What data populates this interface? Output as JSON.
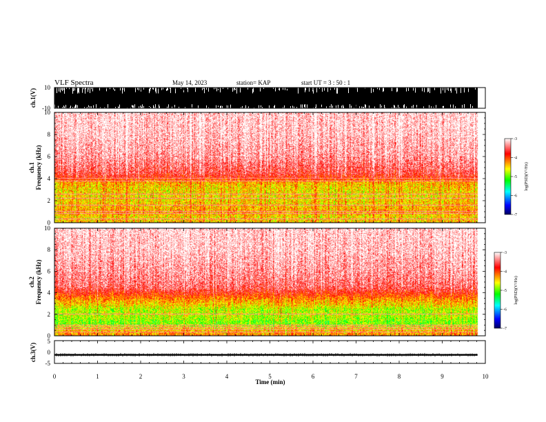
{
  "header": {
    "title": "VLF Spectra",
    "date": "May 14, 2023",
    "station": "station= KAP",
    "start": "start  UT  =   3  : 50 : 1"
  },
  "chart_data": [
    {
      "type": "line",
      "name": "ch1-waveform",
      "ylabel": "ch.1(V)",
      "ylim": [
        -10,
        10
      ],
      "ytick_labels": [
        "10",
        "-10"
      ],
      "xlim": [
        0,
        10
      ],
      "data_end_min": 9.82,
      "envelope": "saturated black trace, full scale -10 to 10 V with gaps reaching about -6 to 4 V"
    },
    {
      "type": "heatmap",
      "name": "ch1-spectrogram",
      "ylabel": "ch.1\nFrequency  (kHz)",
      "ylim": [
        0,
        10
      ],
      "ytick_labels": [
        "0",
        "2",
        "4",
        "6",
        "8",
        "10"
      ],
      "xlim": [
        0,
        10
      ],
      "data_end_min": 9.82,
      "profile_kHz": [
        0,
        0.5,
        0.9,
        1.5,
        2.0,
        2.5,
        3.0,
        3.5,
        3.8,
        4.0,
        4.5,
        6.0,
        8.0,
        10.0
      ],
      "profile_logPSD": [
        -4.4,
        -4.5,
        -4.3,
        -4.4,
        -4.5,
        -4.5,
        -4.5,
        -4.4,
        -4.2,
        -3.9,
        -3.6,
        -3.3,
        -3.15,
        -3.1
      ],
      "lines_kHz": [
        0.3,
        0.8,
        1.0,
        1.6,
        2.2,
        2.6,
        3.8,
        4.0
      ]
    },
    {
      "type": "heatmap",
      "name": "ch2-spectrogram",
      "ylabel": "ch.2\nFrequency  (kHz)",
      "ylim": [
        0,
        10
      ],
      "ytick_labels": [
        "0",
        "2",
        "4",
        "6",
        "8",
        "10"
      ],
      "xlim": [
        0,
        10
      ],
      "data_end_min": 9.82,
      "profile_kHz": [
        0,
        0.5,
        0.8,
        1.0,
        1.3,
        1.6,
        2.0,
        2.4,
        2.8,
        3.3,
        4.0,
        4.5,
        6.0,
        8.0,
        10.0
      ],
      "profile_logPSD": [
        -4.2,
        -4.4,
        -4.6,
        -4.85,
        -4.95,
        -4.8,
        -4.7,
        -4.8,
        -4.5,
        -4.3,
        -3.8,
        -3.5,
        -3.3,
        -3.15,
        -3.1
      ],
      "lines_kHz": [
        0.3,
        0.6,
        0.8,
        1.0,
        2.0
      ]
    },
    {
      "type": "line",
      "name": "ch3-waveform",
      "ylabel": "ch.3(V)",
      "ylim": [
        -5,
        5
      ],
      "ytick_labels": [
        "5",
        "0",
        "-5"
      ],
      "xlim": [
        0,
        10
      ],
      "data_end_min": 9.82,
      "level_V": [
        -1.6,
        -0.9
      ]
    }
  ],
  "colorbar": {
    "label": "log(PSD)(V²/Hz)",
    "range": [
      -7,
      -3
    ],
    "tick_labels": [
      "-3",
      "-4",
      "-5",
      "-6",
      "-7"
    ],
    "stops": [
      "#000060",
      "#0000ff",
      "#00ffff",
      "#00ff00",
      "#ffff00",
      "#ff8000",
      "#ff0000",
      "#ffffff"
    ]
  },
  "xaxis": {
    "label": "Time  (min)",
    "tick_labels": [
      "0",
      "1",
      "2",
      "3",
      "4",
      "5",
      "6",
      "7",
      "8",
      "9",
      "10"
    ]
  }
}
